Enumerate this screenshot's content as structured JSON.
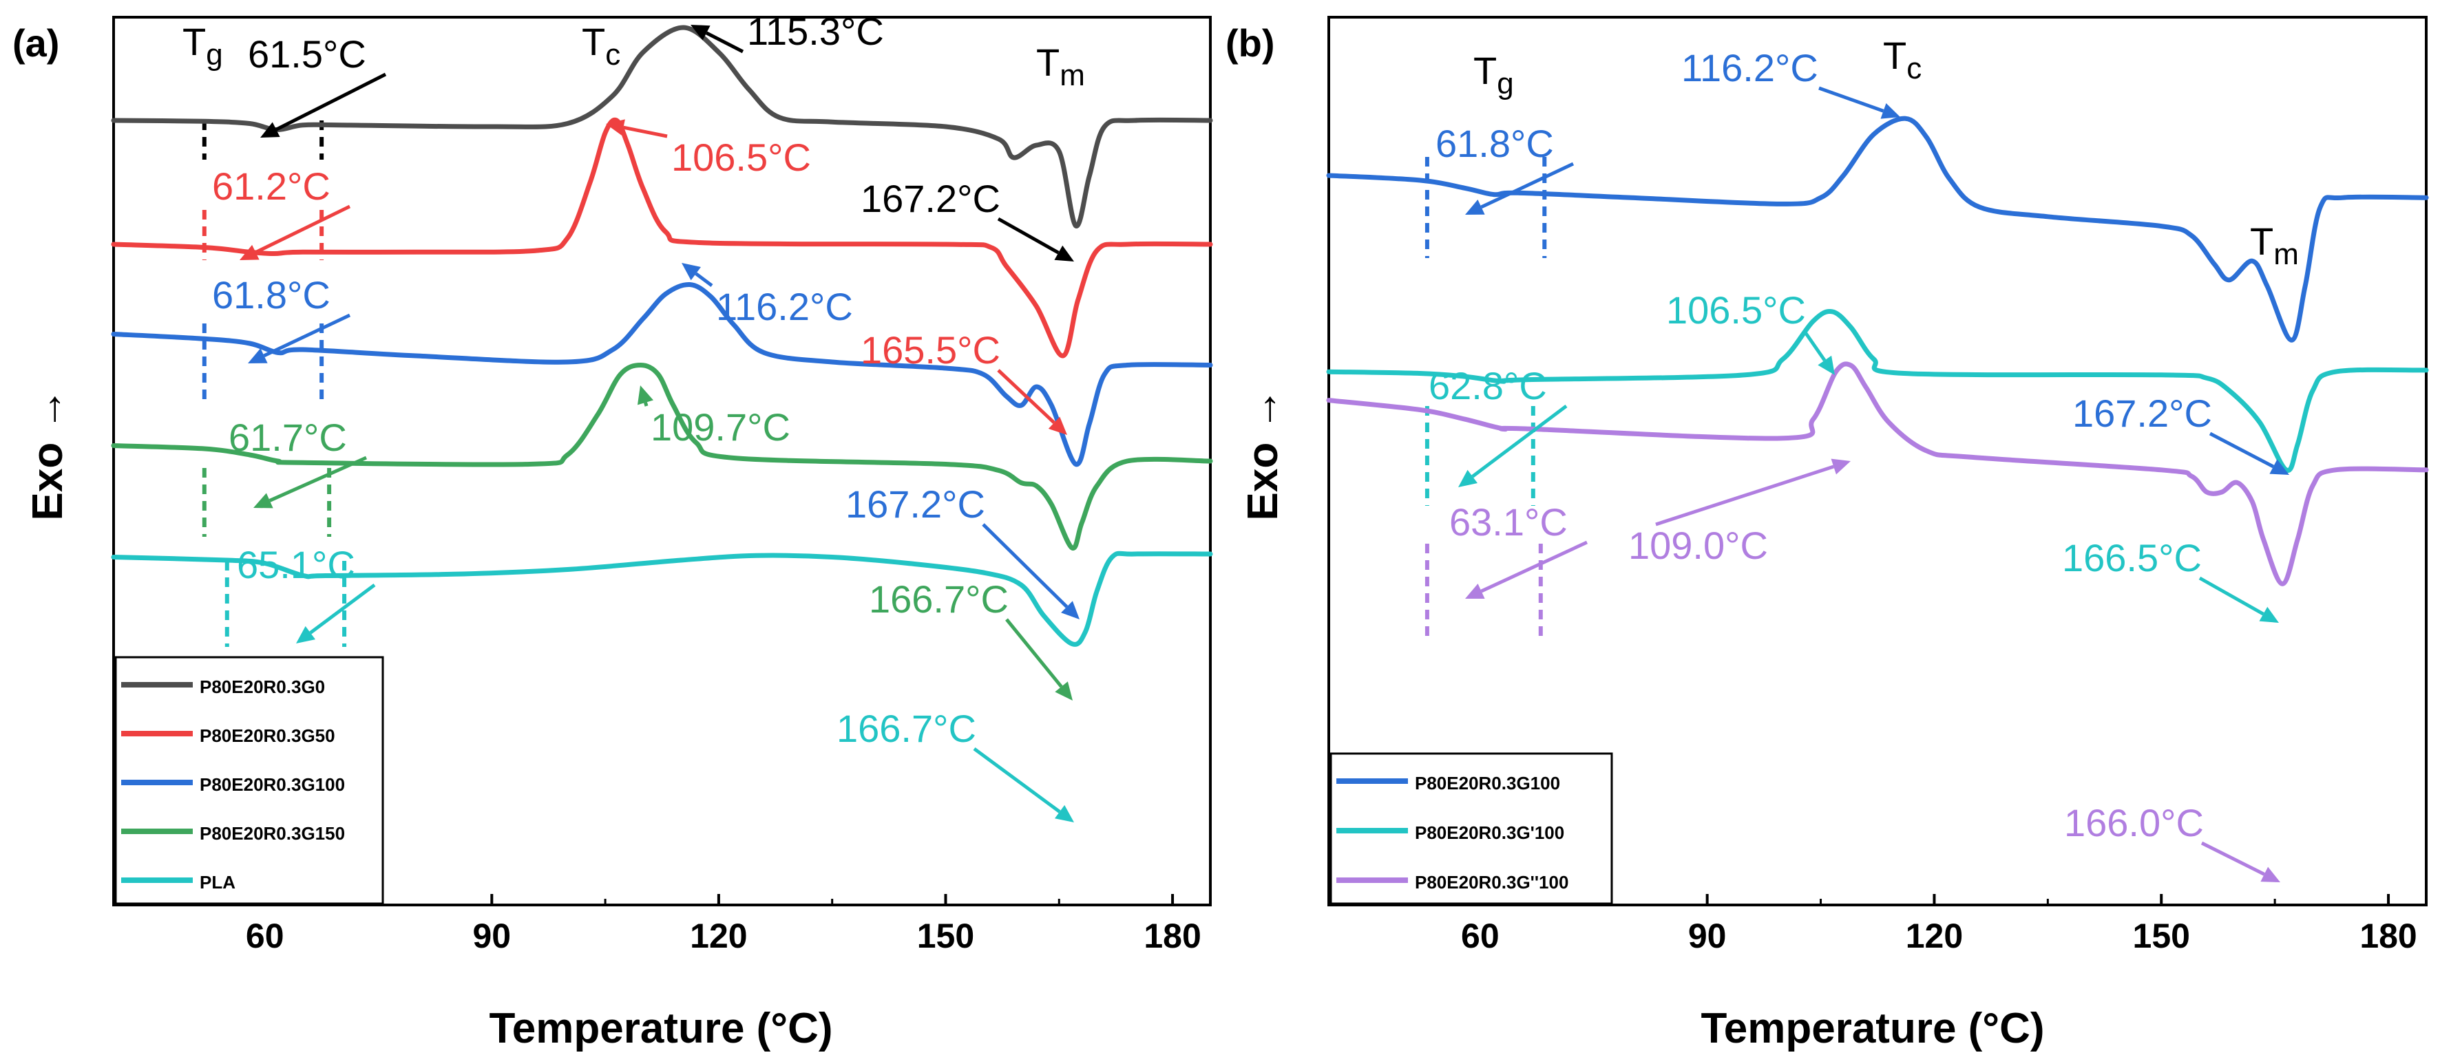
{
  "panels": [
    {
      "panel_label": "(a)",
      "ylabel": "Exo →",
      "xlabel": "Temperature (°C)",
      "xticks": [
        "60",
        "90",
        "120",
        "150",
        "180"
      ],
      "symbols": [
        {
          "main": "T",
          "sub": "g"
        },
        {
          "main": "T",
          "sub": "c"
        },
        {
          "main": "T",
          "sub": "m"
        }
      ],
      "legend": [
        {
          "base": "P",
          "parts": [
            [
              "80",
              ""
            ],
            [
              "E",
              ""
            ],
            [
              "20",
              ""
            ],
            [
              "R",
              ""
            ],
            [
              "0.3",
              ""
            ],
            [
              "G",
              ""
            ],
            [
              "0",
              ""
            ]
          ],
          "label": "P80E20R0.3G0",
          "color": "#4d4d4d"
        },
        {
          "label": "P80E20R0.3G50",
          "color": "#ee4040"
        },
        {
          "label": "P80E20R0.3G100",
          "color": "#2b6fd6"
        },
        {
          "label": "P80E20R0.3G150",
          "color": "#3ea65c"
        },
        {
          "label": "PLA",
          "color": "#22c4c4"
        }
      ],
      "annotations": [
        "61.5°C",
        "115.3°C",
        "167.2°C",
        "61.2°C",
        "106.5°C",
        "165.5°C",
        "61.8°C",
        "116.2°C",
        "167.2°C",
        "61.7°C",
        "109.7°C",
        "166.7°C",
        "65.1°C",
        "166.7°C"
      ]
    },
    {
      "panel_label": "(b)",
      "ylabel": "Exo →",
      "xlabel": "Temperature (°C)",
      "xticks": [
        "60",
        "90",
        "120",
        "150",
        "180"
      ],
      "symbols": [
        {
          "main": "T",
          "sub": "g"
        },
        {
          "main": "T",
          "sub": "c"
        },
        {
          "main": "T",
          "sub": "m"
        }
      ],
      "legend": [
        {
          "label": "P80E20R0.3G100",
          "color": "#2b6fd6"
        },
        {
          "label": "P80E20R0.3G'100",
          "color": "#22c4c4"
        },
        {
          "label": "P80E20R0.3G''100",
          "color": "#b07ee0"
        }
      ],
      "annotations": [
        "116.2°C",
        "61.8°C",
        "167.2°C",
        "106.5°C",
        "62.8°C",
        "166.5°C",
        "63.1°C",
        "109.0°C",
        "166.0°C"
      ]
    }
  ],
  "chart_data": [
    {
      "type": "line",
      "panel": "(a)",
      "xlabel": "Temperature (°C)",
      "ylabel": "Exo →",
      "xlim": [
        40,
        185
      ],
      "xticks": [
        60,
        90,
        120,
        150,
        180
      ],
      "y_ticks_shown": false,
      "legend_position": "bottom-left",
      "series": [
        {
          "name": "P80E20R0.3G0",
          "color": "#4d4d4d",
          "baseline": 0,
          "Tg": 61.5,
          "Tc": 115.3,
          "Tm": 167.2,
          "points": [
            [
              40,
              0
            ],
            [
              52,
              -0.3
            ],
            [
              58,
              -1
            ],
            [
              61.5,
              -3
            ],
            [
              65,
              -1.5
            ],
            [
              70,
              -1.5
            ],
            [
              90,
              -2
            ],
            [
              100,
              -1
            ],
            [
              106,
              8
            ],
            [
              110,
              22
            ],
            [
              115.3,
              30
            ],
            [
              120,
              22
            ],
            [
              124,
              10
            ],
            [
              128,
              1
            ],
            [
              135,
              -0.5
            ],
            [
              150,
              -2
            ],
            [
              157,
              -6
            ],
            [
              159,
              -12
            ],
            [
              162,
              -8
            ],
            [
              165,
              -10
            ],
            [
              167.2,
              -34
            ],
            [
              169,
              -18
            ],
            [
              171,
              -2
            ],
            [
              175,
              0
            ],
            [
              185,
              0
            ]
          ]
        },
        {
          "name": "P80E20R0.3G50",
          "color": "#ee4040",
          "baseline": -40,
          "Tg": 61.2,
          "Tc": 106.5,
          "Tm": 165.5,
          "points": [
            [
              40,
              -40
            ],
            [
              52,
              -41
            ],
            [
              58,
              -42.5
            ],
            [
              61.2,
              -43
            ],
            [
              65,
              -42.5
            ],
            [
              80,
              -42.5
            ],
            [
              96,
              -42
            ],
            [
              100,
              -38
            ],
            [
              103,
              -20
            ],
            [
              105,
              -4
            ],
            [
              106.5,
              0
            ],
            [
              108,
              -8
            ],
            [
              110,
              -22
            ],
            [
              113,
              -36
            ],
            [
              118,
              -39.5
            ],
            [
              150,
              -40
            ],
            [
              156,
              -41
            ],
            [
              158,
              -47
            ],
            [
              162,
              -60
            ],
            [
              165.5,
              -76
            ],
            [
              167.5,
              -58
            ],
            [
              170,
              -42
            ],
            [
              174,
              -40
            ],
            [
              185,
              -40
            ]
          ]
        },
        {
          "name": "P80E20R0.3G100",
          "color": "#2b6fd6",
          "baseline": -75,
          "Tg": 61.8,
          "Tc": 116.2,
          "Tm": 167.2,
          "points": [
            [
              40,
              -69
            ],
            [
              52,
              -70.5
            ],
            [
              58,
              -72
            ],
            [
              61.8,
              -75
            ],
            [
              65,
              -74
            ],
            [
              80,
              -76
            ],
            [
              100,
              -78
            ],
            [
              106,
              -74
            ],
            [
              110,
              -64
            ],
            [
              113,
              -56
            ],
            [
              116.2,
              -53
            ],
            [
              119,
              -57
            ],
            [
              122,
              -66
            ],
            [
              126,
              -75
            ],
            [
              135,
              -78
            ],
            [
              150,
              -80
            ],
            [
              155,
              -82
            ],
            [
              158,
              -89
            ],
            [
              160,
              -92
            ],
            [
              162,
              -86
            ],
            [
              164,
              -92
            ],
            [
              167.2,
              -111
            ],
            [
              169,
              -98
            ],
            [
              171,
              -82
            ],
            [
              174,
              -79
            ],
            [
              185,
              -79
            ]
          ]
        },
        {
          "name": "P80E20R0.3G150",
          "color": "#3ea65c",
          "baseline": -110,
          "Tg": 61.7,
          "Tc": 109.7,
          "Tm": 166.7,
          "points": [
            [
              40,
              -105
            ],
            [
              52,
              -106
            ],
            [
              58,
              -108
            ],
            [
              61.7,
              -110
            ],
            [
              65,
              -110.5
            ],
            [
              95,
              -111
            ],
            [
              100,
              -108
            ],
            [
              104,
              -95
            ],
            [
              107,
              -82
            ],
            [
              109.7,
              -79
            ],
            [
              112,
              -82
            ],
            [
              114,
              -92
            ],
            [
              117,
              -104
            ],
            [
              122,
              -109
            ],
            [
              150,
              -111
            ],
            [
              157,
              -113
            ],
            [
              160,
              -117
            ],
            [
              162,
              -118
            ],
            [
              164,
              -124
            ],
            [
              166.7,
              -138
            ],
            [
              168,
              -130
            ],
            [
              170,
              -118
            ],
            [
              174,
              -110
            ],
            [
              185,
              -110
            ]
          ]
        },
        {
          "name": "PLA",
          "color": "#22c4c4",
          "baseline": -146,
          "Tg": 65.1,
          "Tm": 166.7,
          "points": [
            [
              40,
              -141
            ],
            [
              55,
              -142
            ],
            [
              60,
              -143
            ],
            [
              65.1,
              -147
            ],
            [
              68,
              -147
            ],
            [
              85,
              -146.5
            ],
            [
              100,
              -145
            ],
            [
              115,
              -142
            ],
            [
              125,
              -140.5
            ],
            [
              135,
              -141
            ],
            [
              145,
              -143
            ],
            [
              155,
              -146
            ],
            [
              160,
              -150
            ],
            [
              163,
              -160
            ],
            [
              166.7,
              -169
            ],
            [
              168.5,
              -165
            ],
            [
              170,
              -152
            ],
            [
              172,
              -141
            ],
            [
              175,
              -140
            ],
            [
              185,
              -140
            ]
          ]
        }
      ]
    },
    {
      "type": "line",
      "panel": "(b)",
      "xlabel": "Temperature (°C)",
      "ylabel": "Exo →",
      "xlim": [
        40,
        185
      ],
      "xticks": [
        60,
        90,
        120,
        150,
        180
      ],
      "y_ticks_shown": false,
      "legend_position": "bottom-left",
      "series": [
        {
          "name": "P80E20R0.3G100",
          "color": "#2b6fd6",
          "baseline": -10,
          "Tg": 61.8,
          "Tc": 116.2,
          "Tm": 167.2,
          "points": [
            [
              40,
              0
            ],
            [
              52,
              -1.5
            ],
            [
              58,
              -4
            ],
            [
              61.8,
              -6
            ],
            [
              65,
              -5.5
            ],
            [
              80,
              -7
            ],
            [
              100,
              -9
            ],
            [
              105,
              -7
            ],
            [
              108,
              0
            ],
            [
              112,
              13
            ],
            [
              116.2,
              18
            ],
            [
              119,
              12
            ],
            [
              122,
              -1
            ],
            [
              126,
              -10
            ],
            [
              135,
              -13
            ],
            [
              150,
              -16
            ],
            [
              154,
              -19
            ],
            [
              157,
              -28
            ],
            [
              159,
              -33
            ],
            [
              162,
              -27
            ],
            [
              164,
              -35
            ],
            [
              167.2,
              -52
            ],
            [
              169,
              -35
            ],
            [
              171,
              -10
            ],
            [
              174,
              -7
            ],
            [
              185,
              -7
            ]
          ]
        },
        {
          "name": "P80E20R0.3G'100",
          "color": "#22c4c4",
          "baseline": -60,
          "Tg": 62.8,
          "Tc": 106.5,
          "Tm": 166.5,
          "points": [
            [
              40,
              -62
            ],
            [
              52,
              -62.5
            ],
            [
              58,
              -63.5
            ],
            [
              62.8,
              -65
            ],
            [
              66,
              -64.5
            ],
            [
              95,
              -63
            ],
            [
              100,
              -58
            ],
            [
              104,
              -46
            ],
            [
              106.5,
              -43
            ],
            [
              109,
              -48
            ],
            [
              112,
              -58
            ],
            [
              116,
              -62.5
            ],
            [
              150,
              -63
            ],
            [
              156,
              -64
            ],
            [
              159,
              -68
            ],
            [
              163,
              -78
            ],
            [
              166.5,
              -93
            ],
            [
              168,
              -85
            ],
            [
              170,
              -68
            ],
            [
              173,
              -62
            ],
            [
              185,
              -61.5
            ]
          ]
        },
        {
          "name": "P80E20R0.3G''100",
          "color": "#b07ee0",
          "baseline": -110,
          "Tg": 63.1,
          "Tc": 109.0,
          "Tm": 166.0,
          "points": [
            [
              40,
              -71
            ],
            [
              52,
              -74
            ],
            [
              58,
              -77
            ],
            [
              63.1,
              -80
            ],
            [
              66,
              -80
            ],
            [
              100,
              -83
            ],
            [
              104,
              -77
            ],
            [
              107,
              -62
            ],
            [
              109,
              -60
            ],
            [
              111,
              -67
            ],
            [
              114,
              -78
            ],
            [
              119,
              -87
            ],
            [
              125,
              -89
            ],
            [
              150,
              -93
            ],
            [
              154,
              -95
            ],
            [
              156,
              -100
            ],
            [
              158,
              -100
            ],
            [
              160,
              -97
            ],
            [
              162,
              -103
            ],
            [
              163.5,
              -115
            ],
            [
              166,
              -129
            ],
            [
              168,
              -115
            ],
            [
              170,
              -98
            ],
            [
              173,
              -93
            ],
            [
              185,
              -93
            ]
          ]
        }
      ]
    }
  ]
}
